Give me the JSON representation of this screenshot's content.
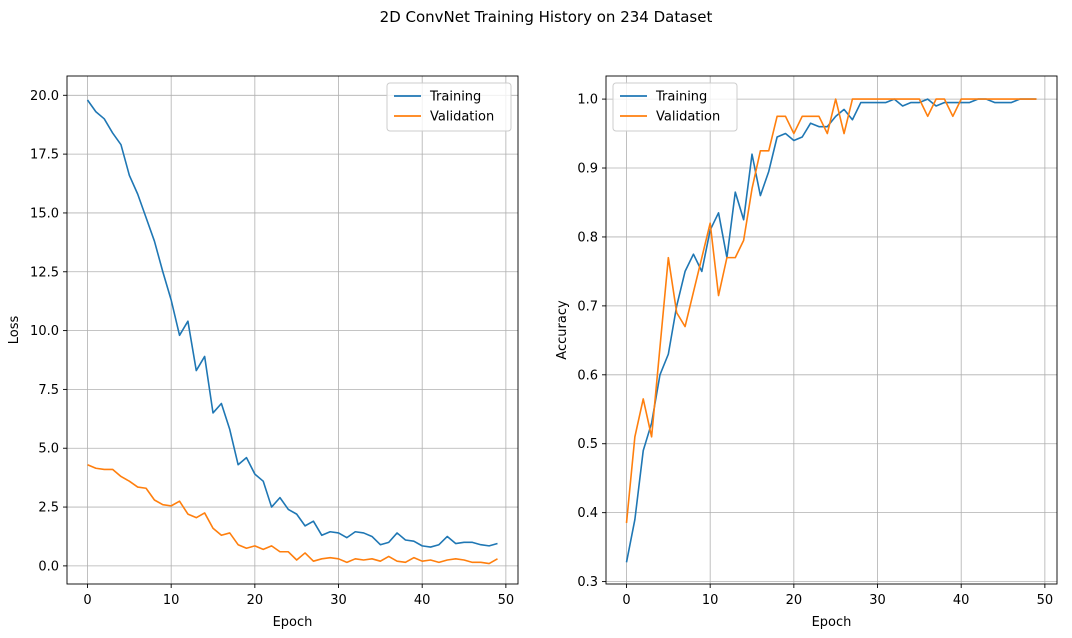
{
  "figure": {
    "title": "2D ConvNet Training History on 234 Dataset"
  },
  "chart_data": [
    {
      "type": "line",
      "title": "",
      "xlabel": "Epoch",
      "ylabel": "Loss",
      "xlim": [
        -2.45,
        51.45
      ],
      "ylim": [
        -0.77,
        20.82
      ],
      "xticks": [
        0,
        10,
        20,
        30,
        40,
        50
      ],
      "yticks": [
        0.0,
        2.5,
        5.0,
        7.5,
        10.0,
        12.5,
        15.0,
        17.5,
        20.0
      ],
      "ytick_labels": [
        "0.0",
        "2.5",
        "5.0",
        "7.5",
        "10.0",
        "12.5",
        "15.0",
        "17.5",
        "20.0"
      ],
      "grid": true,
      "legend": "top-right",
      "series": [
        {
          "name": "Training",
          "color": "#1f77b4",
          "values": [
            19.8,
            19.3,
            19.0,
            18.4,
            17.9,
            16.6,
            15.8,
            14.8,
            13.8,
            12.5,
            11.3,
            9.8,
            10.4,
            8.3,
            8.9,
            6.5,
            6.9,
            5.8,
            4.3,
            4.6,
            3.9,
            3.6,
            2.5,
            2.9,
            2.4,
            2.2,
            1.7,
            1.9,
            1.3,
            1.45,
            1.4,
            1.2,
            1.45,
            1.4,
            1.25,
            0.9,
            1.0,
            1.4,
            1.1,
            1.05,
            0.85,
            0.8,
            0.9,
            1.25,
            0.95,
            1.0,
            1.0,
            0.9,
            0.85,
            0.95
          ]
        },
        {
          "name": "Validation",
          "color": "#ff7f0e",
          "values": [
            4.3,
            4.15,
            4.1,
            4.1,
            3.8,
            3.6,
            3.35,
            3.3,
            2.8,
            2.6,
            2.55,
            2.75,
            2.2,
            2.05,
            2.25,
            1.6,
            1.3,
            1.4,
            0.9,
            0.75,
            0.85,
            0.7,
            0.85,
            0.6,
            0.6,
            0.25,
            0.55,
            0.2,
            0.3,
            0.35,
            0.3,
            0.15,
            0.3,
            0.25,
            0.3,
            0.2,
            0.4,
            0.2,
            0.15,
            0.35,
            0.2,
            0.25,
            0.15,
            0.25,
            0.3,
            0.25,
            0.15,
            0.15,
            0.1,
            0.3
          ]
        }
      ]
    },
    {
      "type": "line",
      "title": "",
      "xlabel": "Epoch",
      "ylabel": "Accuracy",
      "xlim": [
        -2.45,
        51.45
      ],
      "ylim": [
        0.2965,
        1.0335
      ],
      "xticks": [
        0,
        10,
        20,
        30,
        40,
        50
      ],
      "yticks": [
        0.3,
        0.4,
        0.5,
        0.6,
        0.7,
        0.8,
        0.9,
        1.0
      ],
      "ytick_labels": [
        "0.3",
        "0.4",
        "0.5",
        "0.6",
        "0.7",
        "0.8",
        "0.9",
        "1.0"
      ],
      "grid": true,
      "legend": "top-left",
      "series": [
        {
          "name": "Training",
          "color": "#1f77b4",
          "values": [
            0.328,
            0.39,
            0.49,
            0.53,
            0.6,
            0.63,
            0.7,
            0.75,
            0.775,
            0.75,
            0.81,
            0.835,
            0.77,
            0.865,
            0.825,
            0.92,
            0.86,
            0.895,
            0.945,
            0.95,
            0.94,
            0.945,
            0.965,
            0.96,
            0.96,
            0.975,
            0.985,
            0.97,
            0.995,
            0.995,
            0.995,
            0.995,
            1.0,
            0.99,
            0.995,
            0.995,
            1.0,
            0.99,
            0.995,
            0.995,
            0.995,
            0.995,
            1.0,
            1.0,
            0.995,
            0.995,
            0.995,
            1.0,
            1.0,
            1.0
          ]
        },
        {
          "name": "Validation",
          "color": "#ff7f0e",
          "values": [
            0.385,
            0.51,
            0.565,
            0.51,
            0.64,
            0.77,
            0.69,
            0.67,
            0.72,
            0.77,
            0.82,
            0.715,
            0.77,
            0.77,
            0.795,
            0.87,
            0.925,
            0.925,
            0.975,
            0.975,
            0.95,
            0.975,
            0.975,
            0.975,
            0.95,
            1.0,
            0.95,
            1.0,
            1.0,
            1.0,
            1.0,
            1.0,
            1.0,
            1.0,
            1.0,
            1.0,
            0.975,
            1.0,
            1.0,
            0.975,
            1.0,
            1.0,
            1.0,
            1.0,
            1.0,
            1.0,
            1.0,
            1.0,
            1.0,
            1.0
          ]
        }
      ]
    }
  ]
}
